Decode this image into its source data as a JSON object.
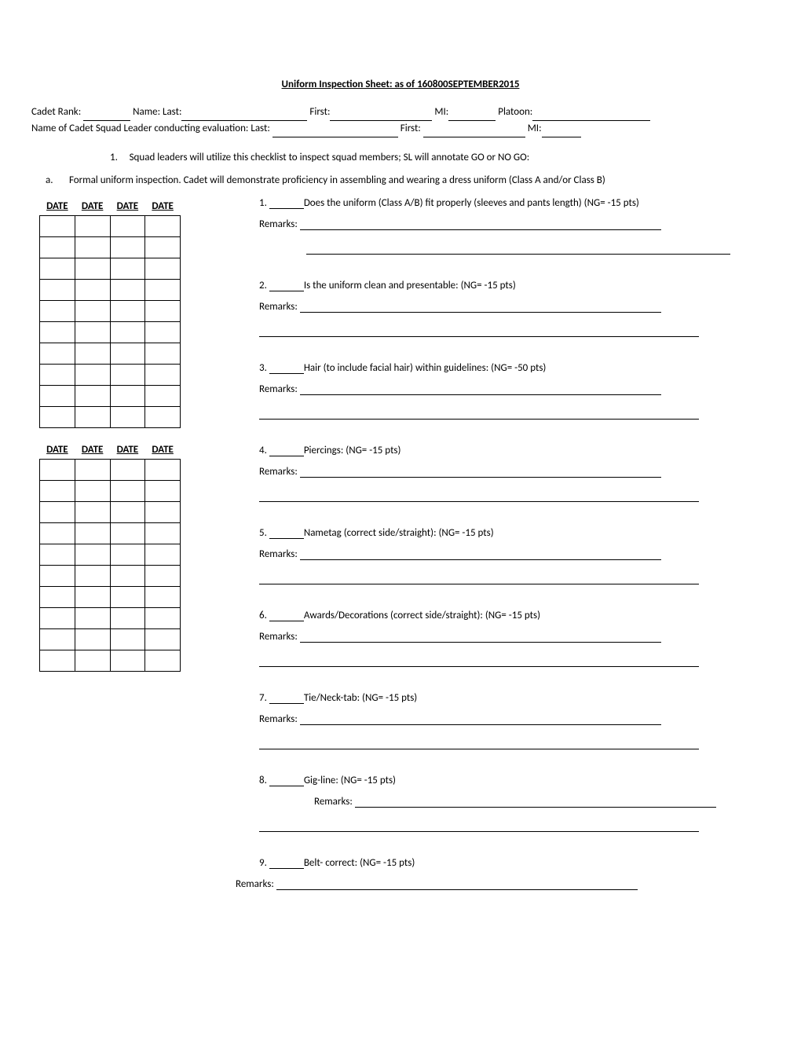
{
  "title": "Uniform Inspection Sheet: as of 160800SEPTEMBER2015",
  "header": {
    "rank_label": "Cadet Rank:",
    "name_last": "Name: Last:",
    "first": "First:",
    "mi": "MI:",
    "platoon": "Platoon:",
    "evaluator": "Name of Cadet Squad Leader conducting evaluation: Last:"
  },
  "instruction_num": "1.",
  "instruction": "Squad leaders will utilize this checklist to inspect squad members; SL will annotate GO or NO GO:",
  "section_a_label": "a.",
  "section_a": "Formal uniform inspection. Cadet will demonstrate proficiency in assembling and wearing a dress uniform (Class A and/or Class B)",
  "date_header": "DATE",
  "table1_rows": 10,
  "table2_rows": 10,
  "remarks_label": "Remarks:",
  "items": [
    {
      "num": "1.",
      "text": "Does the uniform (Class A/B) fit properly (sleeves and pants length) (NG= -15 pts)"
    },
    {
      "num": "2.",
      "text": "Is the uniform clean and presentable: (NG= -15 pts)"
    },
    {
      "num": "3.",
      "text": "Hair (to include facial hair) within guidelines: (NG= -50 pts)"
    },
    {
      "num": "4.",
      "text": "Piercings: (NG= -15 pts)"
    },
    {
      "num": "5.",
      "text": "Nametag (correct side/straight): (NG= -15 pts)"
    },
    {
      "num": "6.",
      "text": "Awards/Decorations (correct side/straight): (NG= -15 pts)"
    },
    {
      "num": "7.",
      "text": "Tie/Neck-tab: (NG= -15 pts)"
    },
    {
      "num": "8.",
      "text": "Gig-line: (NG= -15 pts)"
    },
    {
      "num": "9.",
      "text": "Belt- correct: (NG= -15 pts)"
    }
  ]
}
